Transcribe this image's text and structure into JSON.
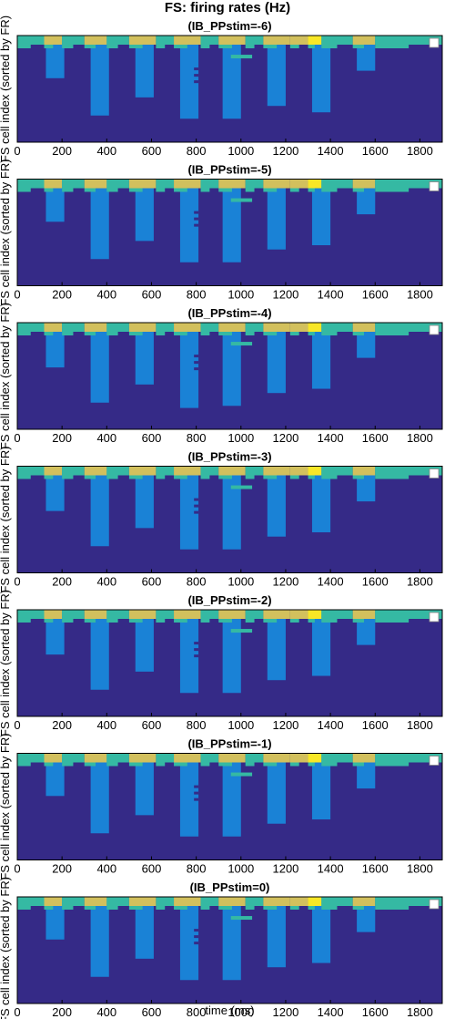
{
  "figure": {
    "title": "FS: firing rates (Hz)",
    "xlabel": "time (ms)",
    "ylabel": "FS cell index (sorted by FR)"
  },
  "colors": {
    "background": "#352a87",
    "low": "#1a82d6",
    "mid": "#35b9a3",
    "high": "#d2c05d",
    "peak": "#f8e726",
    "axis": "#000000"
  },
  "chart_data": {
    "type": "heatmap",
    "x": {
      "label": "time (ms)",
      "lim": [
        0,
        1900
      ],
      "ticks": [
        0,
        200,
        400,
        600,
        800,
        1000,
        1200,
        1400,
        1600,
        1800
      ]
    },
    "y": {
      "label": "FS cell index (sorted by FR)",
      "direction": "reverse"
    },
    "colormap": "parula",
    "grid": false,
    "panels": [
      {
        "title": "(IB_PPstim=-6)",
        "columns": [
          {
            "t0": 110,
            "t1": 210,
            "depth": 0.4
          },
          {
            "t0": 310,
            "t1": 410,
            "depth": 0.75
          },
          {
            "t0": 510,
            "t1": 610,
            "depth": 0.58
          },
          {
            "t0": 710,
            "t1": 810,
            "depth": 0.78
          },
          {
            "t0": 900,
            "t1": 1000,
            "depth": 0.78
          },
          {
            "t0": 1100,
            "t1": 1200,
            "depth": 0.66
          },
          {
            "t0": 1300,
            "t1": 1400,
            "depth": 0.72
          },
          {
            "t0": 1500,
            "t1": 1600,
            "depth": 0.33
          }
        ]
      },
      {
        "title": "(IB_PPstim=-5)",
        "columns": [
          {
            "t0": 110,
            "t1": 210,
            "depth": 0.4
          },
          {
            "t0": 310,
            "t1": 410,
            "depth": 0.75
          },
          {
            "t0": 510,
            "t1": 610,
            "depth": 0.58
          },
          {
            "t0": 710,
            "t1": 810,
            "depth": 0.78
          },
          {
            "t0": 900,
            "t1": 1000,
            "depth": 0.78
          },
          {
            "t0": 1100,
            "t1": 1200,
            "depth": 0.66
          },
          {
            "t0": 1300,
            "t1": 1400,
            "depth": 0.62
          },
          {
            "t0": 1500,
            "t1": 1600,
            "depth": 0.33
          }
        ]
      },
      {
        "title": "(IB_PPstim=-4)",
        "columns": [
          {
            "t0": 110,
            "t1": 210,
            "depth": 0.42
          },
          {
            "t0": 310,
            "t1": 410,
            "depth": 0.75
          },
          {
            "t0": 510,
            "t1": 610,
            "depth": 0.58
          },
          {
            "t0": 710,
            "t1": 810,
            "depth": 0.8
          },
          {
            "t0": 900,
            "t1": 1000,
            "depth": 0.78
          },
          {
            "t0": 1100,
            "t1": 1200,
            "depth": 0.66
          },
          {
            "t0": 1300,
            "t1": 1400,
            "depth": 0.62
          },
          {
            "t0": 1500,
            "t1": 1600,
            "depth": 0.33
          }
        ]
      },
      {
        "title": "(IB_PPstim=-3)",
        "columns": [
          {
            "t0": 110,
            "t1": 210,
            "depth": 0.42
          },
          {
            "t0": 310,
            "t1": 410,
            "depth": 0.75
          },
          {
            "t0": 510,
            "t1": 610,
            "depth": 0.58
          },
          {
            "t0": 710,
            "t1": 810,
            "depth": 0.78
          },
          {
            "t0": 900,
            "t1": 1000,
            "depth": 0.78
          },
          {
            "t0": 1100,
            "t1": 1200,
            "depth": 0.66
          },
          {
            "t0": 1300,
            "t1": 1400,
            "depth": 0.62
          },
          {
            "t0": 1500,
            "t1": 1600,
            "depth": 0.33
          }
        ]
      },
      {
        "title": "(IB_PPstim=-2)",
        "columns": [
          {
            "t0": 110,
            "t1": 210,
            "depth": 0.42
          },
          {
            "t0": 310,
            "t1": 410,
            "depth": 0.75
          },
          {
            "t0": 510,
            "t1": 610,
            "depth": 0.58
          },
          {
            "t0": 710,
            "t1": 810,
            "depth": 0.78
          },
          {
            "t0": 900,
            "t1": 1000,
            "depth": 0.78
          },
          {
            "t0": 1100,
            "t1": 1200,
            "depth": 0.66
          },
          {
            "t0": 1300,
            "t1": 1400,
            "depth": 0.62
          },
          {
            "t0": 1500,
            "t1": 1600,
            "depth": 0.33
          }
        ]
      },
      {
        "title": "(IB_PPstim=-1)",
        "columns": [
          {
            "t0": 110,
            "t1": 210,
            "depth": 0.4
          },
          {
            "t0": 310,
            "t1": 410,
            "depth": 0.75
          },
          {
            "t0": 510,
            "t1": 610,
            "depth": 0.58
          },
          {
            "t0": 710,
            "t1": 810,
            "depth": 0.78
          },
          {
            "t0": 900,
            "t1": 1000,
            "depth": 0.78
          },
          {
            "t0": 1100,
            "t1": 1200,
            "depth": 0.66
          },
          {
            "t0": 1300,
            "t1": 1400,
            "depth": 0.62
          },
          {
            "t0": 1500,
            "t1": 1600,
            "depth": 0.33
          }
        ]
      },
      {
        "title": "(IB_PPstim=0)",
        "columns": [
          {
            "t0": 110,
            "t1": 210,
            "depth": 0.4
          },
          {
            "t0": 310,
            "t1": 410,
            "depth": 0.75
          },
          {
            "t0": 510,
            "t1": 610,
            "depth": 0.58
          },
          {
            "t0": 710,
            "t1": 810,
            "depth": 0.78
          },
          {
            "t0": 900,
            "t1": 1000,
            "depth": 0.78
          },
          {
            "t0": 1100,
            "t1": 1200,
            "depth": 0.66
          },
          {
            "t0": 1300,
            "t1": 1400,
            "depth": 0.62
          },
          {
            "t0": 1500,
            "t1": 1600,
            "depth": 0.33
          }
        ]
      }
    ],
    "top_band": [
      {
        "t0": 0,
        "t1": 120,
        "level": "mid"
      },
      {
        "t0": 120,
        "t1": 200,
        "level": "high"
      },
      {
        "t0": 200,
        "t1": 300,
        "level": "mid"
      },
      {
        "t0": 300,
        "t1": 400,
        "level": "high"
      },
      {
        "t0": 400,
        "t1": 500,
        "level": "mid"
      },
      {
        "t0": 500,
        "t1": 620,
        "level": "high"
      },
      {
        "t0": 620,
        "t1": 700,
        "level": "mid"
      },
      {
        "t0": 700,
        "t1": 820,
        "level": "high"
      },
      {
        "t0": 820,
        "t1": 900,
        "level": "mid"
      },
      {
        "t0": 900,
        "t1": 1020,
        "level": "high"
      },
      {
        "t0": 1020,
        "t1": 1100,
        "level": "mid"
      },
      {
        "t0": 1100,
        "t1": 1220,
        "level": "high"
      },
      {
        "t0": 1220,
        "t1": 1300,
        "level": "high"
      },
      {
        "t0": 1300,
        "t1": 1360,
        "level": "peak"
      },
      {
        "t0": 1360,
        "t1": 1500,
        "level": "mid"
      },
      {
        "t0": 1500,
        "t1": 1600,
        "level": "high"
      },
      {
        "t0": 1600,
        "t1": 1900,
        "level": "mid"
      }
    ]
  }
}
